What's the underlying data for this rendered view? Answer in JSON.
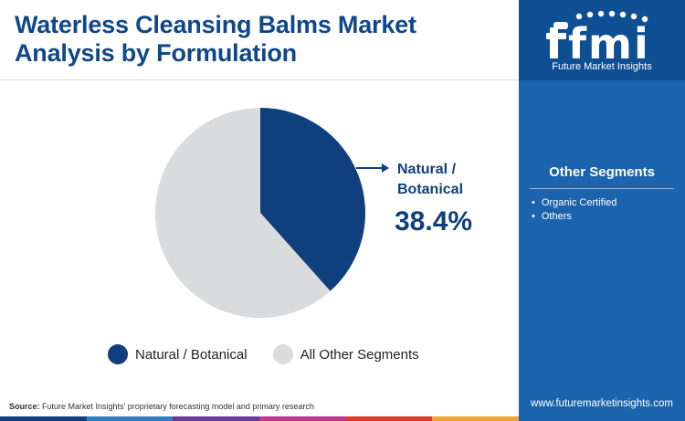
{
  "title": "Waterless Cleansing Balms Market Analysis by Formulation",
  "logo": {
    "letters": "fmi",
    "caption": "Future Market Insights"
  },
  "colors": {
    "primary": "#0f3f7d",
    "secondary": "#dadbdc",
    "title": "#0f4788",
    "sidebar": "#1b64ad"
  },
  "chart_data": {
    "type": "pie",
    "slices": [
      {
        "label": "Natural / Botanical",
        "value": 38.4,
        "color": "#0f3f7d"
      },
      {
        "label": "All Other Segments",
        "value": 61.6,
        "color": "#dadbdc"
      }
    ],
    "callout": {
      "label_line1": "Natural /",
      "label_line2": "Botanical",
      "value": "38.4%"
    },
    "legend": [
      {
        "label": "Natural / Botanical",
        "color": "#0f3f7d"
      },
      {
        "label": "All Other Segments",
        "color": "#dadbdc"
      }
    ],
    "legend_position": "bottom"
  },
  "side_panel": {
    "title": "Other Segments",
    "items": [
      "Organic Certified",
      "Others"
    ]
  },
  "source": {
    "label": "Source:",
    "text": "Future Market Insights' proprietary forecasting model and primary research"
  },
  "website": "www.futuremarketinsights.com",
  "bottom_bar_colors": [
    "#0f3f7d",
    "#2f7cc7",
    "#6a3d9a",
    "#c6368d",
    "#e23b2e",
    "#f0a22f"
  ]
}
